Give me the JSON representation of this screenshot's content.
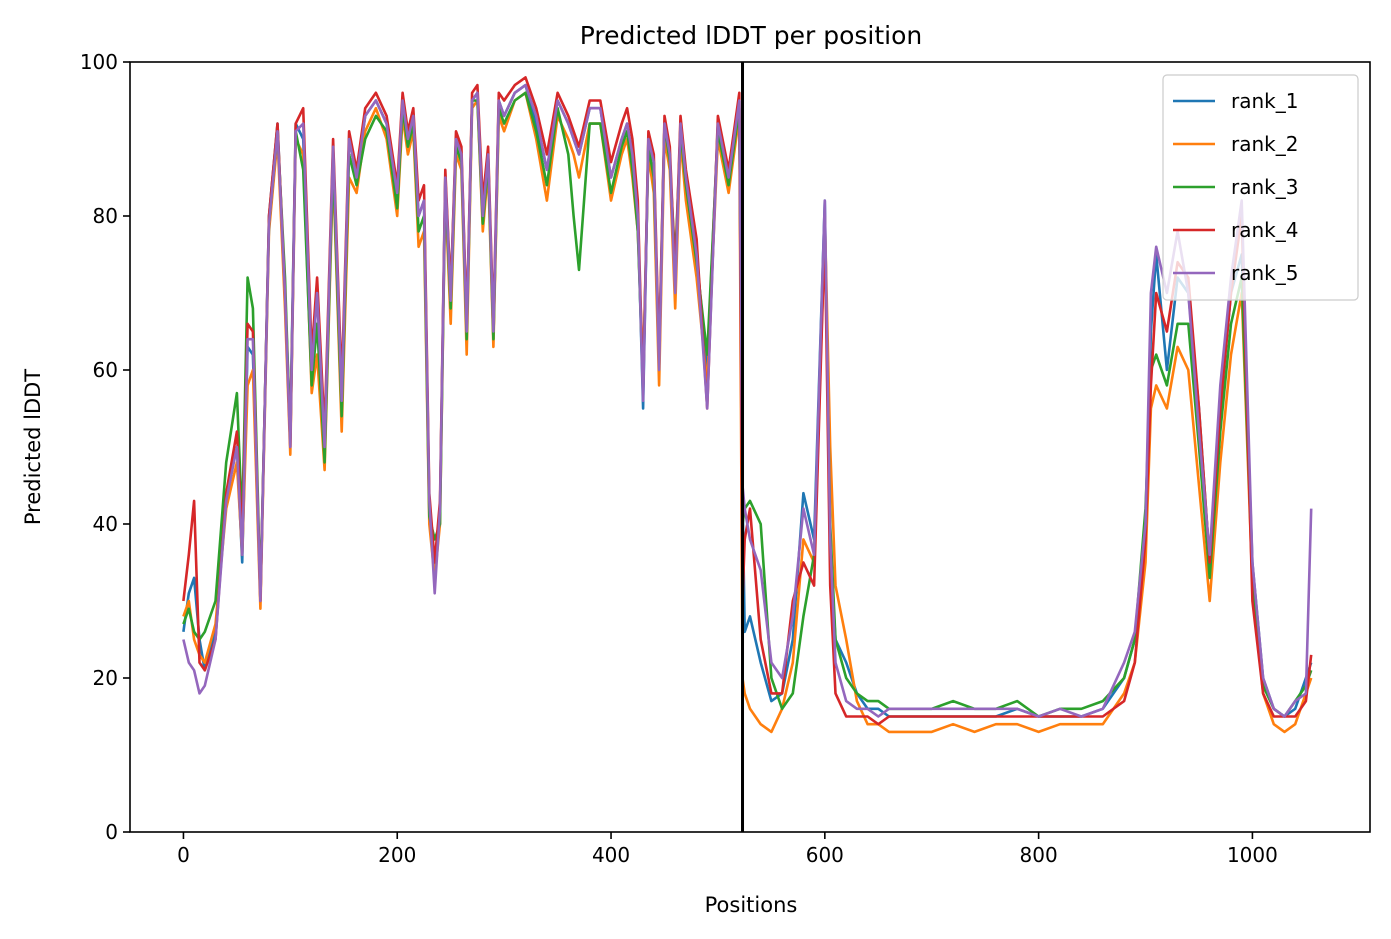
{
  "chart_data": {
    "type": "line",
    "title": "Predicted lDDT per position",
    "xlabel": "Positions",
    "ylabel": "Predicted lDDT",
    "xlim": [
      -50,
      1110
    ],
    "ylim": [
      0,
      100
    ],
    "xticks": [
      0,
      200,
      400,
      600,
      800,
      1000
    ],
    "yticks": [
      0,
      20,
      40,
      60,
      80,
      100
    ],
    "grid": false,
    "legend_position": "top-right",
    "vline": {
      "x": 523,
      "color": "#000000"
    },
    "series": [
      {
        "name": "rank_1",
        "color": "#1f77b4",
        "x": [
          0,
          5,
          10,
          15,
          20,
          30,
          40,
          50,
          55,
          60,
          65,
          72,
          80,
          88,
          95,
          100,
          105,
          112,
          120,
          125,
          132,
          140,
          148,
          155,
          162,
          170,
          180,
          190,
          200,
          205,
          210,
          215,
          220,
          225,
          230,
          235,
          240,
          245,
          250,
          255,
          260,
          265,
          270,
          275,
          280,
          285,
          290,
          295,
          300,
          310,
          320,
          330,
          340,
          350,
          360,
          365,
          370,
          380,
          390,
          400,
          410,
          415,
          420,
          425,
          430,
          435,
          440,
          445,
          450,
          455,
          460,
          465,
          470,
          480,
          490,
          500,
          510,
          520,
          523,
          525,
          530,
          540,
          550,
          560,
          570,
          580,
          590,
          600,
          605,
          610,
          620,
          630,
          640,
          650,
          660,
          680,
          700,
          720,
          740,
          760,
          780,
          800,
          820,
          840,
          860,
          880,
          890,
          900,
          905,
          910,
          920,
          930,
          940,
          950,
          960,
          970,
          980,
          990,
          1000,
          1010,
          1020,
          1030,
          1040,
          1050,
          1055
        ],
        "y": [
          26,
          31,
          33,
          25,
          21,
          26,
          44,
          50,
          35,
          63,
          62,
          30,
          80,
          92,
          70,
          52,
          92,
          90,
          60,
          70,
          50,
          88,
          55,
          90,
          85,
          93,
          95,
          92,
          82,
          95,
          90,
          93,
          80,
          82,
          42,
          34,
          42,
          85,
          70,
          90,
          88,
          65,
          95,
          96,
          80,
          88,
          64,
          95,
          93,
          96,
          97,
          92,
          86,
          95,
          92,
          90,
          88,
          94,
          94,
          85,
          90,
          92,
          88,
          80,
          55,
          90,
          87,
          60,
          92,
          88,
          70,
          92,
          85,
          75,
          60,
          92,
          85,
          95,
          44,
          26,
          28,
          22,
          17,
          18,
          25,
          44,
          38,
          82,
          36,
          25,
          22,
          18,
          16,
          16,
          15,
          15,
          15,
          15,
          15,
          15,
          16,
          15,
          15,
          15,
          16,
          20,
          25,
          40,
          65,
          75,
          60,
          72,
          70,
          55,
          35,
          55,
          70,
          75,
          35,
          20,
          16,
          15,
          16,
          20,
          22
        ]
      },
      {
        "name": "rank_2",
        "color": "#ff7f0e",
        "x": [
          0,
          5,
          10,
          15,
          20,
          30,
          40,
          50,
          55,
          60,
          65,
          72,
          80,
          88,
          95,
          100,
          105,
          112,
          120,
          125,
          132,
          140,
          148,
          155,
          162,
          170,
          180,
          190,
          200,
          205,
          210,
          215,
          220,
          225,
          230,
          235,
          240,
          245,
          250,
          255,
          260,
          265,
          270,
          275,
          280,
          285,
          290,
          295,
          300,
          310,
          320,
          330,
          340,
          350,
          360,
          365,
          370,
          380,
          390,
          400,
          410,
          415,
          420,
          425,
          430,
          435,
          440,
          445,
          450,
          455,
          460,
          465,
          470,
          480,
          490,
          500,
          510,
          520,
          523,
          525,
          530,
          540,
          550,
          560,
          570,
          580,
          590,
          600,
          605,
          610,
          620,
          630,
          640,
          650,
          660,
          680,
          700,
          720,
          740,
          760,
          780,
          800,
          820,
          840,
          860,
          880,
          890,
          900,
          905,
          910,
          920,
          930,
          940,
          950,
          960,
          970,
          980,
          990,
          1000,
          1010,
          1020,
          1030,
          1040,
          1050,
          1055
        ],
        "y": [
          28,
          30,
          25,
          23,
          22,
          27,
          42,
          48,
          36,
          58,
          60,
          29,
          78,
          90,
          68,
          49,
          90,
          88,
          57,
          62,
          47,
          86,
          52,
          85,
          83,
          91,
          94,
          90,
          80,
          93,
          88,
          91,
          76,
          78,
          40,
          33,
          40,
          83,
          66,
          88,
          86,
          62,
          94,
          95,
          78,
          86,
          63,
          93,
          91,
          95,
          96,
          90,
          82,
          93,
          90,
          88,
          85,
          92,
          92,
          82,
          88,
          90,
          85,
          78,
          60,
          88,
          83,
          58,
          90,
          86,
          68,
          90,
          82,
          72,
          58,
          90,
          83,
          93,
          20,
          18,
          16,
          14,
          13,
          16,
          22,
          38,
          35,
          80,
          50,
          32,
          25,
          17,
          14,
          14,
          13,
          13,
          13,
          14,
          13,
          14,
          14,
          13,
          14,
          14,
          14,
          18,
          22,
          35,
          55,
          58,
          55,
          63,
          60,
          45,
          30,
          48,
          62,
          70,
          32,
          18,
          14,
          13,
          14,
          18,
          20
        ]
      },
      {
        "name": "rank_3",
        "color": "#2ca02c",
        "x": [
          0,
          5,
          10,
          15,
          20,
          30,
          40,
          50,
          55,
          60,
          65,
          72,
          80,
          88,
          95,
          100,
          105,
          112,
          120,
          125,
          132,
          140,
          148,
          155,
          162,
          170,
          180,
          190,
          200,
          205,
          210,
          215,
          220,
          225,
          230,
          235,
          240,
          245,
          250,
          255,
          260,
          265,
          270,
          275,
          280,
          285,
          290,
          295,
          300,
          310,
          320,
          330,
          340,
          350,
          360,
          365,
          370,
          380,
          390,
          400,
          410,
          415,
          420,
          425,
          430,
          435,
          440,
          445,
          450,
          455,
          460,
          465,
          470,
          480,
          490,
          500,
          510,
          520,
          523,
          525,
          530,
          540,
          550,
          560,
          570,
          580,
          590,
          600,
          605,
          610,
          620,
          630,
          640,
          650,
          660,
          680,
          700,
          720,
          740,
          760,
          780,
          800,
          820,
          840,
          860,
          880,
          890,
          900,
          905,
          910,
          920,
          930,
          940,
          950,
          960,
          970,
          980,
          990,
          1000,
          1010,
          1020,
          1030,
          1040,
          1050,
          1055
        ],
        "y": [
          27,
          29,
          26,
          25,
          26,
          30,
          48,
          57,
          40,
          72,
          68,
          31,
          79,
          91,
          72,
          51,
          91,
          86,
          58,
          66,
          48,
          87,
          54,
          88,
          84,
          90,
          93,
          91,
          81,
          94,
          89,
          92,
          78,
          80,
          41,
          38,
          40,
          84,
          68,
          89,
          87,
          64,
          95,
          95,
          79,
          87,
          64,
          94,
          92,
          95,
          96,
          91,
          84,
          94,
          88,
          80,
          73,
          92,
          92,
          83,
          89,
          91,
          86,
          78,
          58,
          89,
          85,
          62,
          92,
          87,
          74,
          91,
          84,
          74,
          62,
          91,
          84,
          94,
          40,
          42,
          43,
          40,
          20,
          16,
          18,
          28,
          36,
          78,
          40,
          25,
          20,
          18,
          17,
          17,
          16,
          16,
          16,
          17,
          16,
          16,
          17,
          15,
          16,
          16,
          17,
          20,
          25,
          42,
          60,
          62,
          58,
          66,
          66,
          50,
          33,
          52,
          66,
          72,
          33,
          19,
          16,
          15,
          17,
          19,
          21
        ]
      },
      {
        "name": "rank_4",
        "color": "#d62728",
        "x": [
          0,
          5,
          10,
          15,
          20,
          30,
          40,
          50,
          55,
          60,
          65,
          72,
          80,
          88,
          95,
          100,
          105,
          112,
          120,
          125,
          132,
          140,
          148,
          155,
          162,
          170,
          180,
          190,
          200,
          205,
          210,
          215,
          220,
          225,
          230,
          235,
          240,
          245,
          250,
          255,
          260,
          265,
          270,
          275,
          280,
          285,
          290,
          295,
          300,
          310,
          320,
          330,
          340,
          350,
          360,
          365,
          370,
          380,
          390,
          400,
          410,
          415,
          420,
          425,
          430,
          435,
          440,
          445,
          450,
          455,
          460,
          465,
          470,
          480,
          490,
          500,
          510,
          520,
          523,
          525,
          530,
          540,
          550,
          560,
          570,
          580,
          590,
          600,
          605,
          610,
          620,
          630,
          640,
          650,
          660,
          680,
          700,
          720,
          740,
          760,
          780,
          800,
          820,
          840,
          860,
          880,
          890,
          900,
          905,
          910,
          920,
          930,
          940,
          950,
          960,
          970,
          980,
          990,
          1000,
          1010,
          1020,
          1030,
          1040,
          1050,
          1055
        ],
        "y": [
          30,
          36,
          43,
          22,
          21,
          25,
          44,
          52,
          38,
          66,
          65,
          30,
          80,
          92,
          70,
          50,
          92,
          94,
          62,
          72,
          52,
          90,
          58,
          91,
          86,
          94,
          96,
          93,
          84,
          96,
          91,
          94,
          82,
          84,
          44,
          35,
          43,
          86,
          70,
          91,
          89,
          66,
          96,
          97,
          82,
          89,
          66,
          96,
          95,
          97,
          98,
          94,
          88,
          96,
          93,
          91,
          89,
          95,
          95,
          87,
          92,
          94,
          90,
          82,
          57,
          91,
          88,
          62,
          93,
          89,
          72,
          93,
          86,
          77,
          55,
          93,
          86,
          96,
          30,
          38,
          42,
          25,
          18,
          18,
          30,
          35,
          32,
          78,
          32,
          18,
          15,
          15,
          15,
          14,
          15,
          15,
          15,
          15,
          15,
          15,
          15,
          15,
          15,
          15,
          15,
          17,
          22,
          38,
          58,
          70,
          65,
          74,
          72,
          55,
          35,
          55,
          70,
          80,
          30,
          18,
          15,
          15,
          15,
          17,
          23
        ]
      },
      {
        "name": "rank_5",
        "color": "#9467bd",
        "x": [
          0,
          5,
          10,
          15,
          20,
          30,
          40,
          50,
          55,
          60,
          65,
          72,
          80,
          88,
          95,
          100,
          105,
          112,
          120,
          125,
          132,
          140,
          148,
          155,
          162,
          170,
          180,
          190,
          200,
          205,
          210,
          215,
          220,
          225,
          230,
          235,
          240,
          245,
          250,
          255,
          260,
          265,
          270,
          275,
          280,
          285,
          290,
          295,
          300,
          310,
          320,
          330,
          340,
          350,
          360,
          365,
          370,
          380,
          390,
          400,
          410,
          415,
          420,
          425,
          430,
          435,
          440,
          445,
          450,
          455,
          460,
          465,
          470,
          480,
          490,
          500,
          510,
          520,
          523,
          525,
          530,
          540,
          550,
          560,
          570,
          580,
          590,
          600,
          605,
          610,
          620,
          630,
          640,
          650,
          660,
          680,
          700,
          720,
          740,
          760,
          780,
          800,
          820,
          840,
          860,
          880,
          890,
          900,
          905,
          910,
          920,
          930,
          940,
          950,
          960,
          970,
          980,
          990,
          1000,
          1010,
          1020,
          1030,
          1040,
          1050,
          1055
        ],
        "y": [
          25,
          22,
          21,
          18,
          19,
          25,
          43,
          50,
          36,
          64,
          64,
          30,
          79,
          91,
          70,
          50,
          91,
          92,
          60,
          70,
          50,
          89,
          56,
          90,
          85,
          93,
          95,
          92,
          83,
          95,
          90,
          93,
          80,
          82,
          43,
          31,
          42,
          85,
          69,
          90,
          88,
          65,
          95,
          96,
          80,
          88,
          65,
          95,
          93,
          96,
          97,
          93,
          86,
          95,
          92,
          90,
          88,
          94,
          94,
          85,
          90,
          92,
          88,
          80,
          56,
          90,
          87,
          60,
          92,
          88,
          70,
          92,
          85,
          75,
          55,
          92,
          85,
          95,
          45,
          42,
          38,
          34,
          22,
          20,
          28,
          42,
          36,
          82,
          38,
          22,
          17,
          16,
          16,
          15,
          16,
          16,
          16,
          16,
          16,
          16,
          16,
          15,
          16,
          15,
          16,
          22,
          26,
          40,
          70,
          76,
          70,
          78,
          70,
          52,
          36,
          58,
          72,
          82,
          35,
          20,
          16,
          15,
          17,
          18,
          42
        ]
      }
    ]
  }
}
